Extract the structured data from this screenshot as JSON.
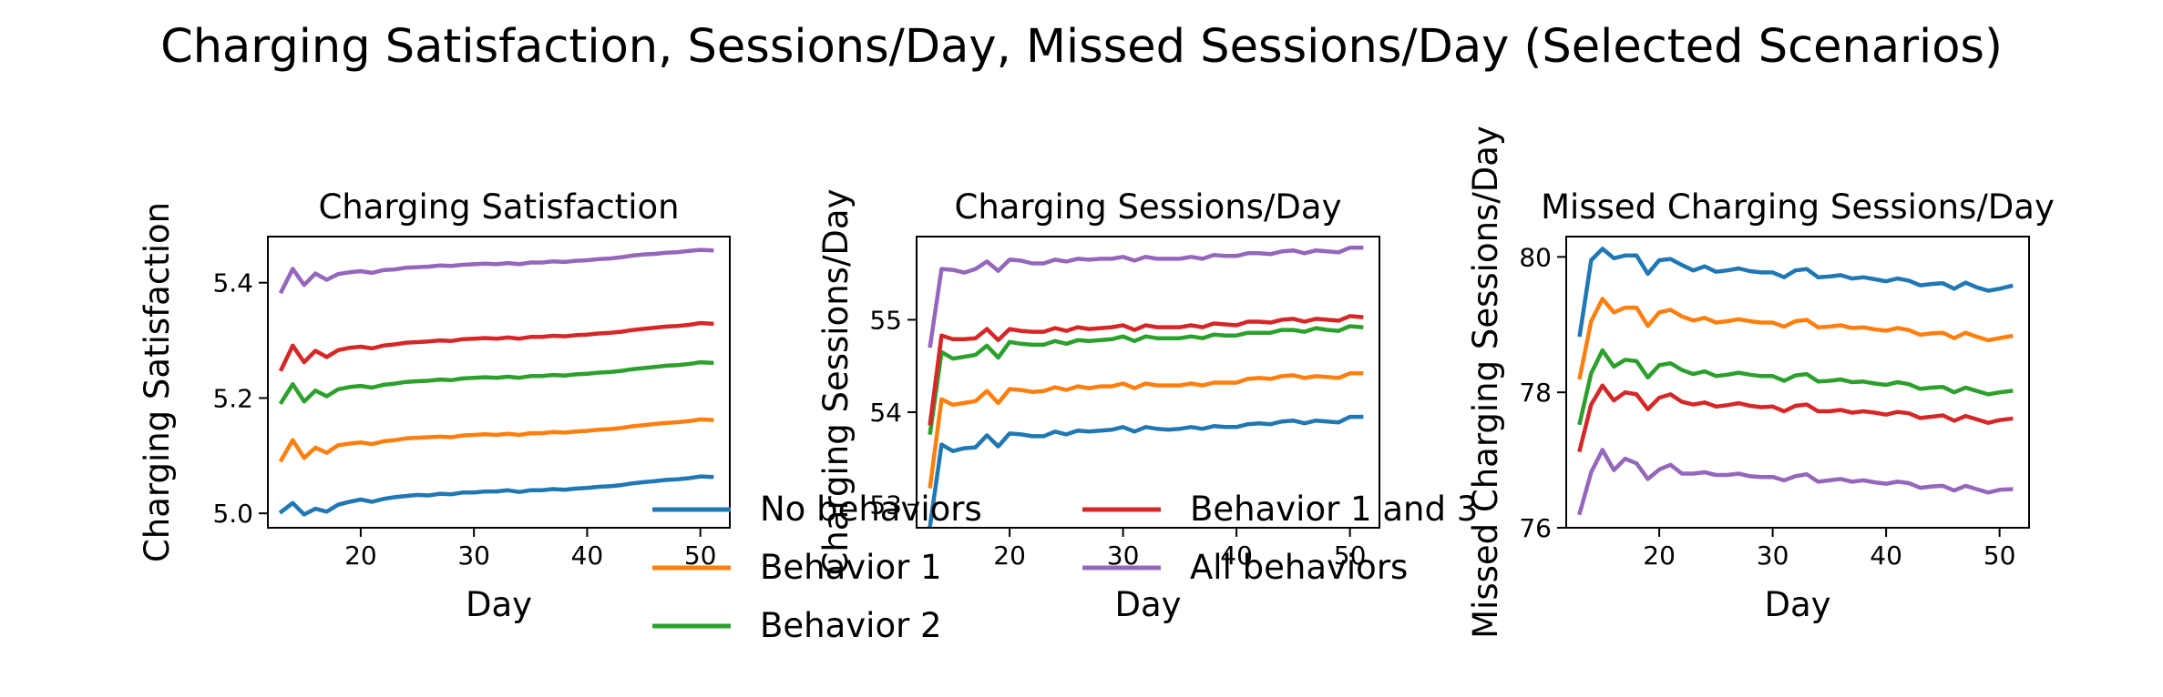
{
  "figure": {
    "suptitle": "Charging Satisfaction, Sessions/Day, Missed Sessions/Day (Selected Scenarios)"
  },
  "legend": {
    "placement": "bottom-center, overlapping the panels",
    "entries": [
      {
        "name": "No behaviors",
        "color": "#1f77b4"
      },
      {
        "name": "Behavior 1",
        "color": "#ff7f0e"
      },
      {
        "name": "Behavior 2",
        "color": "#2ca02c"
      },
      {
        "name": "Behavior 1 and 3",
        "color": "#d62728"
      },
      {
        "name": "All behaviors",
        "color": "#9467bd"
      }
    ]
  },
  "chart_data": [
    {
      "type": "line",
      "title": "Charging Satisfaction",
      "xlabel": "Day",
      "ylabel": "Charging Satisfaction",
      "xlim": [
        11.8,
        52.6
      ],
      "ylim": [
        4.975,
        5.48
      ],
      "xticks": [
        20,
        30,
        40,
        50
      ],
      "yticks": [
        5.0,
        5.2,
        5.4
      ],
      "ytick_labels": [
        "5.0",
        "5.2",
        "5.4"
      ],
      "grid": false,
      "x": [
        13,
        14,
        15,
        16,
        17,
        18,
        19,
        20,
        21,
        22,
        23,
        24,
        25,
        26,
        27,
        28,
        29,
        30,
        31,
        32,
        33,
        34,
        35,
        36,
        37,
        38,
        39,
        40,
        41,
        42,
        43,
        44,
        45,
        46,
        47,
        48,
        49,
        50,
        51
      ],
      "series": [
        {
          "name": "No behaviors",
          "color": "#1f77b4",
          "values": [
            5.003,
            5.018,
            4.998,
            5.008,
            5.003,
            5.015,
            5.02,
            5.024,
            5.02,
            5.025,
            5.028,
            5.03,
            5.032,
            5.031,
            5.034,
            5.033,
            5.036,
            5.036,
            5.038,
            5.038,
            5.04,
            5.037,
            5.04,
            5.04,
            5.042,
            5.041,
            5.043,
            5.044,
            5.046,
            5.047,
            5.049,
            5.052,
            5.054,
            5.056,
            5.058,
            5.059,
            5.061,
            5.064,
            5.063
          ]
        },
        {
          "name": "Behavior 1",
          "color": "#ff7f0e",
          "values": [
            5.093,
            5.127,
            5.096,
            5.114,
            5.105,
            5.118,
            5.121,
            5.123,
            5.12,
            5.125,
            5.127,
            5.13,
            5.131,
            5.132,
            5.133,
            5.132,
            5.135,
            5.136,
            5.137,
            5.136,
            5.138,
            5.136,
            5.139,
            5.139,
            5.141,
            5.14,
            5.142,
            5.143,
            5.145,
            5.146,
            5.148,
            5.151,
            5.153,
            5.155,
            5.157,
            5.158,
            5.16,
            5.163,
            5.162
          ]
        },
        {
          "name": "Behavior 2",
          "color": "#2ca02c",
          "values": [
            5.193,
            5.224,
            5.194,
            5.213,
            5.203,
            5.215,
            5.219,
            5.221,
            5.218,
            5.223,
            5.225,
            5.228,
            5.229,
            5.23,
            5.232,
            5.231,
            5.234,
            5.235,
            5.236,
            5.235,
            5.237,
            5.235,
            5.238,
            5.238,
            5.24,
            5.239,
            5.241,
            5.242,
            5.244,
            5.245,
            5.247,
            5.25,
            5.252,
            5.254,
            5.256,
            5.257,
            5.259,
            5.262,
            5.261
          ]
        },
        {
          "name": "Behavior 1 and 3",
          "color": "#d62728",
          "values": [
            5.25,
            5.291,
            5.262,
            5.282,
            5.271,
            5.283,
            5.287,
            5.289,
            5.286,
            5.291,
            5.293,
            5.296,
            5.297,
            5.298,
            5.3,
            5.299,
            5.302,
            5.303,
            5.304,
            5.303,
            5.305,
            5.303,
            5.306,
            5.306,
            5.308,
            5.307,
            5.309,
            5.31,
            5.312,
            5.313,
            5.315,
            5.318,
            5.32,
            5.322,
            5.324,
            5.325,
            5.327,
            5.33,
            5.329
          ]
        },
        {
          "name": "All behaviors",
          "color": "#9467bd",
          "values": [
            5.385,
            5.424,
            5.396,
            5.416,
            5.405,
            5.415,
            5.418,
            5.42,
            5.417,
            5.422,
            5.423,
            5.426,
            5.427,
            5.428,
            5.43,
            5.429,
            5.431,
            5.432,
            5.433,
            5.432,
            5.434,
            5.432,
            5.435,
            5.435,
            5.437,
            5.436,
            5.438,
            5.439,
            5.441,
            5.442,
            5.444,
            5.447,
            5.449,
            5.45,
            5.452,
            5.453,
            5.455,
            5.457,
            5.456
          ]
        }
      ]
    },
    {
      "type": "line",
      "title": "Charging Sessions/Day",
      "xlabel": "Day",
      "ylabel": "Charging Sessions/Day",
      "xlim": [
        11.8,
        52.6
      ],
      "ylim": [
        52.75,
        55.9
      ],
      "xticks": [
        20,
        30,
        40,
        50
      ],
      "yticks": [
        53,
        54,
        55
      ],
      "ytick_labels": [
        "53",
        "54",
        "55"
      ],
      "grid": false,
      "x": [
        13,
        14,
        15,
        16,
        17,
        18,
        19,
        20,
        21,
        22,
        23,
        24,
        25,
        26,
        27,
        28,
        29,
        30,
        31,
        32,
        33,
        34,
        35,
        36,
        37,
        38,
        39,
        40,
        41,
        42,
        43,
        44,
        45,
        46,
        47,
        48,
        49,
        50,
        51
      ],
      "series": [
        {
          "name": "No behaviors",
          "color": "#1f77b4",
          "values": [
            52.78,
            53.65,
            53.58,
            53.61,
            53.62,
            53.75,
            53.63,
            53.77,
            53.76,
            53.74,
            53.74,
            53.79,
            53.76,
            53.8,
            53.79,
            53.8,
            53.81,
            53.84,
            53.79,
            53.84,
            53.82,
            53.81,
            53.82,
            53.84,
            53.82,
            53.85,
            53.84,
            53.84,
            53.87,
            53.88,
            53.87,
            53.9,
            53.91,
            53.88,
            53.91,
            53.9,
            53.89,
            53.95,
            53.95
          ]
        },
        {
          "name": "Behavior 1",
          "color": "#ff7f0e",
          "values": [
            53.2,
            54.14,
            54.08,
            54.1,
            54.12,
            54.23,
            54.1,
            54.25,
            54.24,
            54.22,
            54.23,
            54.27,
            54.24,
            54.28,
            54.26,
            54.28,
            54.28,
            54.31,
            54.26,
            54.31,
            54.29,
            54.29,
            54.29,
            54.31,
            54.29,
            54.32,
            54.32,
            54.32,
            54.36,
            54.37,
            54.36,
            54.39,
            54.4,
            54.37,
            54.39,
            54.38,
            54.37,
            54.42,
            54.42
          ]
        },
        {
          "name": "Behavior 2",
          "color": "#2ca02c",
          "values": [
            53.78,
            54.65,
            54.58,
            54.6,
            54.62,
            54.72,
            54.59,
            54.76,
            54.74,
            54.73,
            54.73,
            54.77,
            54.74,
            54.78,
            54.77,
            54.78,
            54.79,
            54.82,
            54.77,
            54.82,
            54.8,
            54.8,
            54.8,
            54.82,
            54.8,
            54.84,
            54.83,
            54.83,
            54.86,
            54.86,
            54.86,
            54.89,
            54.89,
            54.87,
            54.91,
            54.89,
            54.88,
            54.93,
            54.92
          ]
        },
        {
          "name": "Behavior 1 and 3",
          "color": "#d62728",
          "values": [
            53.88,
            54.83,
            54.79,
            54.79,
            54.8,
            54.9,
            54.78,
            54.9,
            54.88,
            54.87,
            54.87,
            54.91,
            54.88,
            54.92,
            54.9,
            54.91,
            54.92,
            54.94,
            54.89,
            54.94,
            54.92,
            54.92,
            54.92,
            54.94,
            54.92,
            54.96,
            54.95,
            54.94,
            54.98,
            54.98,
            54.97,
            55.0,
            55.01,
            54.98,
            55.01,
            55.0,
            54.99,
            55.04,
            55.03
          ]
        },
        {
          "name": "All behaviors",
          "color": "#9467bd",
          "values": [
            54.72,
            55.55,
            55.54,
            55.51,
            55.55,
            55.63,
            55.53,
            55.65,
            55.64,
            55.61,
            55.61,
            55.65,
            55.63,
            55.66,
            55.65,
            55.66,
            55.66,
            55.68,
            55.64,
            55.68,
            55.66,
            55.66,
            55.66,
            55.68,
            55.66,
            55.7,
            55.69,
            55.69,
            55.72,
            55.72,
            55.71,
            55.74,
            55.75,
            55.72,
            55.75,
            55.74,
            55.73,
            55.78,
            55.78
          ]
        }
      ]
    },
    {
      "type": "line",
      "title": "Missed Charging Sessions/Day",
      "xlabel": "Day",
      "ylabel": "Missed Charging Sessions/Day",
      "xlim": [
        11.8,
        52.6
      ],
      "ylim": [
        76.0,
        80.3
      ],
      "xticks": [
        20,
        30,
        40,
        50
      ],
      "yticks": [
        76,
        78,
        80
      ],
      "ytick_labels": [
        "76",
        "78",
        "80"
      ],
      "grid": false,
      "x": [
        13,
        14,
        15,
        16,
        17,
        18,
        19,
        20,
        21,
        22,
        23,
        24,
        25,
        26,
        27,
        28,
        29,
        30,
        31,
        32,
        33,
        34,
        35,
        36,
        37,
        38,
        39,
        40,
        41,
        42,
        43,
        44,
        45,
        46,
        47,
        48,
        49,
        50,
        51
      ],
      "series": [
        {
          "name": "No behaviors",
          "color": "#1f77b4",
          "values": [
            78.85,
            79.95,
            80.12,
            79.98,
            80.02,
            80.02,
            79.75,
            79.95,
            79.97,
            79.88,
            79.8,
            79.86,
            79.78,
            79.8,
            79.83,
            79.79,
            79.77,
            79.77,
            79.7,
            79.8,
            79.82,
            79.7,
            79.71,
            79.73,
            79.68,
            79.7,
            79.67,
            79.64,
            79.68,
            79.65,
            79.58,
            79.6,
            79.61,
            79.53,
            79.62,
            79.55,
            79.5,
            79.53,
            79.57
          ]
        },
        {
          "name": "Behavior 1",
          "color": "#ff7f0e",
          "values": [
            78.22,
            79.05,
            79.38,
            79.18,
            79.25,
            79.25,
            78.98,
            79.18,
            79.22,
            79.12,
            79.06,
            79.1,
            79.03,
            79.05,
            79.08,
            79.05,
            79.03,
            79.03,
            78.97,
            79.05,
            79.07,
            78.96,
            78.97,
            78.99,
            78.95,
            78.96,
            78.93,
            78.91,
            78.95,
            78.92,
            78.85,
            78.87,
            78.88,
            78.8,
            78.88,
            78.82,
            78.77,
            78.8,
            78.83
          ]
        },
        {
          "name": "Behavior 2",
          "color": "#2ca02c",
          "values": [
            77.55,
            78.28,
            78.62,
            78.38,
            78.48,
            78.46,
            78.22,
            78.4,
            78.43,
            78.33,
            78.27,
            78.31,
            78.24,
            78.26,
            78.29,
            78.26,
            78.24,
            78.24,
            78.17,
            78.25,
            78.27,
            78.16,
            78.17,
            78.19,
            78.15,
            78.16,
            78.13,
            78.11,
            78.15,
            78.12,
            78.05,
            78.07,
            78.08,
            78.0,
            78.07,
            78.02,
            77.97,
            78.0,
            78.02
          ]
        },
        {
          "name": "Behavior 1 and 3",
          "color": "#d62728",
          "values": [
            77.15,
            77.82,
            78.1,
            77.88,
            78.0,
            77.97,
            77.75,
            77.92,
            77.97,
            77.86,
            77.82,
            77.85,
            77.79,
            77.81,
            77.84,
            77.8,
            77.78,
            77.79,
            77.72,
            77.8,
            77.82,
            77.72,
            77.72,
            77.74,
            77.7,
            77.72,
            77.7,
            77.67,
            77.71,
            77.69,
            77.62,
            77.64,
            77.66,
            77.58,
            77.65,
            77.6,
            77.55,
            77.59,
            77.61
          ]
        },
        {
          "name": "All behaviors",
          "color": "#9467bd",
          "values": [
            76.22,
            76.82,
            77.15,
            76.85,
            77.02,
            76.95,
            76.72,
            76.86,
            76.93,
            76.8,
            76.8,
            76.82,
            76.78,
            76.78,
            76.8,
            76.76,
            76.75,
            76.75,
            76.7,
            76.76,
            76.79,
            76.68,
            76.7,
            76.72,
            76.68,
            76.7,
            76.67,
            76.65,
            76.68,
            76.66,
            76.59,
            76.61,
            76.62,
            76.55,
            76.62,
            76.57,
            76.52,
            76.56,
            76.57
          ]
        }
      ]
    }
  ]
}
